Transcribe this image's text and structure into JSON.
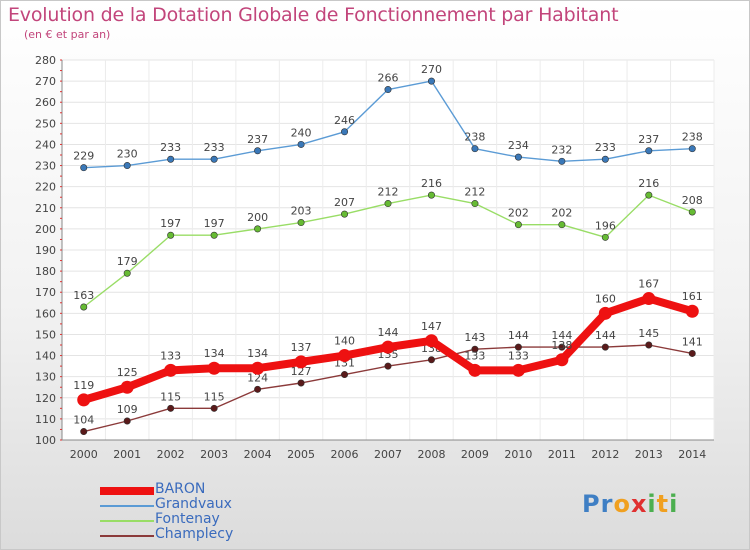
{
  "header": {
    "title": "Evolution de la Dotation Globale de Fonctionnement par Habitant",
    "subtitle": "(en € et par an)"
  },
  "logo": {
    "letters": [
      "P",
      "r",
      "o",
      "x",
      "i",
      "t",
      "i"
    ],
    "colors": [
      "#3f7fc4",
      "#3f7fc4",
      "#f0a020",
      "#e03030",
      "#4caf50",
      "#f0a020",
      "#4caf50"
    ]
  },
  "chart_data": {
    "type": "line",
    "title": "Evolution de la Dotation Globale de Fonctionnement par Habitant",
    "subtitle": "(en € et par an)",
    "xlabel": "",
    "ylabel": "",
    "ylim": [
      100,
      280
    ],
    "yticks": [
      100,
      110,
      120,
      130,
      140,
      150,
      160,
      170,
      180,
      190,
      200,
      210,
      220,
      230,
      240,
      250,
      260,
      270,
      280
    ],
    "x": [
      "2000",
      "2001",
      "2002",
      "2003",
      "2004",
      "2005",
      "2006",
      "2007",
      "2008",
      "2009",
      "2010",
      "2011",
      "2012",
      "2013",
      "2014"
    ],
    "grid": true,
    "legend_position": "bottom-left",
    "series": [
      {
        "name": "Grandvaux",
        "color": "#5b9bd5",
        "marker": "#3a78b8",
        "values": [
          229,
          230,
          233,
          233,
          237,
          240,
          246,
          266,
          270,
          238,
          234,
          232,
          233,
          237,
          238
        ],
        "labels": [
          "229",
          "230",
          "233",
          "233",
          "237",
          "240",
          "246",
          "266",
          "270",
          "238",
          "234",
          "232",
          "233",
          "237",
          "238"
        ]
      },
      {
        "name": "Fontenay",
        "color": "#99dd66",
        "marker": "#66bb33",
        "values": [
          163,
          179,
          197,
          197,
          200,
          203,
          207,
          212,
          216,
          212,
          202,
          202,
          196,
          216,
          208
        ],
        "labels": [
          "163",
          "179",
          "197",
          "197",
          "200",
          "203",
          "207",
          "212",
          "216",
          "212",
          "202",
          "202",
          "196",
          "216",
          "208"
        ]
      },
      {
        "name": "Champlecy",
        "color": "#8b3a3a",
        "marker": "#5a1a1a",
        "values": [
          104,
          109,
          115,
          115,
          124,
          127,
          131,
          135,
          138,
          143,
          144,
          144,
          144,
          145,
          141
        ],
        "labels": [
          "104",
          "109",
          "115",
          "115",
          "124",
          "127",
          "131",
          "135",
          "138",
          "143",
          "144",
          "144",
          "144",
          "145",
          "141"
        ]
      },
      {
        "name": "BARON",
        "color": "#ee1111",
        "marker": "#ee1111",
        "values": [
          119,
          125,
          133,
          134,
          134,
          137,
          140,
          144,
          147,
          133,
          133,
          138,
          160,
          167,
          161
        ],
        "labels": [
          "119",
          "125",
          "133",
          "134",
          "134",
          "137",
          "140",
          "144",
          "147",
          "133",
          "133",
          "138",
          "160",
          "167",
          "161"
        ]
      }
    ],
    "legend": [
      "BARON",
      "Grandvaux",
      "Fontenay",
      "Champlecy"
    ]
  }
}
